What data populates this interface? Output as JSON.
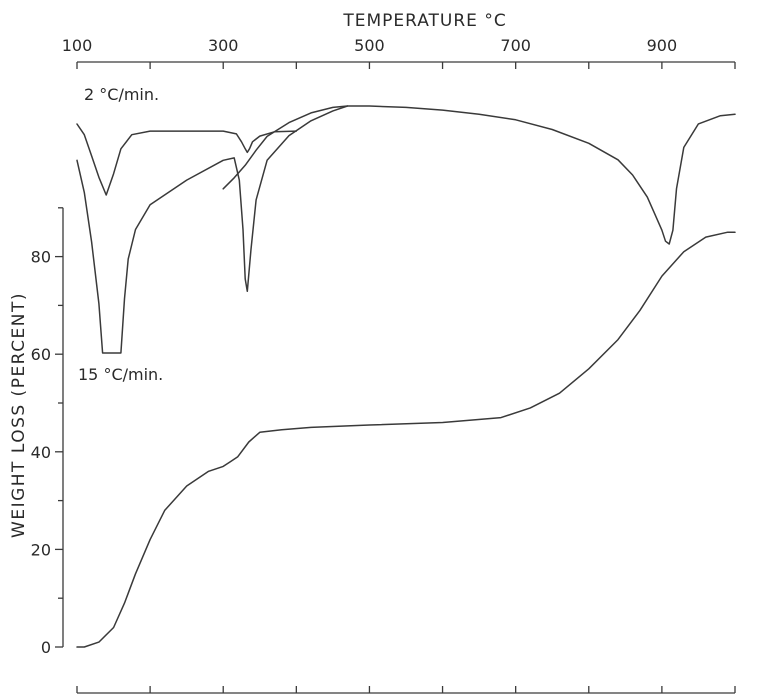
{
  "chart_data": {
    "type": "line",
    "title": "",
    "xlabel": "TEMPERATURE °C",
    "ylabel": "WEIGHT LOSS (PERCENT)",
    "xlim": [
      100,
      1000
    ],
    "ylim": [
      0,
      90
    ],
    "x_ticks": [
      100,
      300,
      500,
      700,
      900
    ],
    "y_ticks": [
      0,
      20,
      40,
      60,
      80
    ],
    "grid": false,
    "ink_color": "#3a3a3a",
    "annotations": [
      {
        "text": "2 °C/min.",
        "series": "dta_2"
      },
      {
        "text": "15 °C/min.",
        "series": "dta_15"
      }
    ],
    "series": [
      {
        "id": "weight_loss",
        "x": [
          100,
          110,
          130,
          150,
          165,
          180,
          200,
          220,
          250,
          280,
          300,
          310,
          320,
          335,
          350,
          380,
          420,
          500,
          600,
          680,
          720,
          760,
          800,
          840,
          870,
          900,
          930,
          960,
          990,
          1000
        ],
        "values": [
          0,
          0,
          1,
          4,
          9,
          15,
          22,
          28,
          33,
          36,
          37,
          38,
          39,
          42,
          44,
          44.5,
          45,
          45.5,
          46,
          47,
          49,
          52,
          57,
          63,
          69,
          76,
          81,
          84,
          85,
          85
        ]
      }
    ],
    "dta_series": [
      {
        "id": "dta_2",
        "comment_free": true,
        "x": [
          100,
          110,
          120,
          130,
          140,
          150,
          160,
          175,
          200,
          250,
          300,
          318,
          325,
          330,
          333,
          336,
          340,
          350,
          370,
          400
        ],
        "depth": [
          0,
          0.15,
          0.45,
          0.75,
          1.0,
          0.7,
          0.35,
          0.15,
          0.1,
          0.1,
          0.1,
          0.14,
          0.25,
          0.35,
          0.4,
          0.35,
          0.25,
          0.17,
          0.11,
          0.1
        ]
      },
      {
        "id": "dta_2_high",
        "x": [
          300,
          315,
          330,
          345,
          360,
          390,
          420,
          450,
          470,
          500,
          550,
          600,
          650,
          700,
          750,
          800,
          840,
          860,
          880,
          890,
          900,
          905,
          910,
          915,
          920,
          930,
          950,
          980,
          1000
        ],
        "depth": [
          0.6,
          0.52,
          0.43,
          0.32,
          0.22,
          0.12,
          0.05,
          0.01,
          0,
          0,
          0.01,
          0.03,
          0.06,
          0.1,
          0.17,
          0.27,
          0.39,
          0.5,
          0.66,
          0.78,
          0.9,
          0.98,
          1.0,
          0.9,
          0.6,
          0.3,
          0.13,
          0.07,
          0.06
        ]
      },
      {
        "id": "dta_15",
        "x": [
          100,
          110,
          120,
          130,
          135,
          140,
          150,
          160,
          165,
          170,
          180,
          200,
          250,
          300,
          315,
          322,
          327,
          330,
          333,
          338,
          345,
          360,
          390,
          420,
          450,
          470
        ],
        "depth": [
          0.22,
          0.35,
          0.55,
          0.8,
          1.0,
          1.0,
          1.0,
          1.0,
          0.78,
          0.62,
          0.5,
          0.4,
          0.3,
          0.22,
          0.21,
          0.3,
          0.5,
          0.7,
          0.75,
          0.58,
          0.38,
          0.22,
          0.12,
          0.06,
          0.02,
          0
        ]
      }
    ]
  }
}
